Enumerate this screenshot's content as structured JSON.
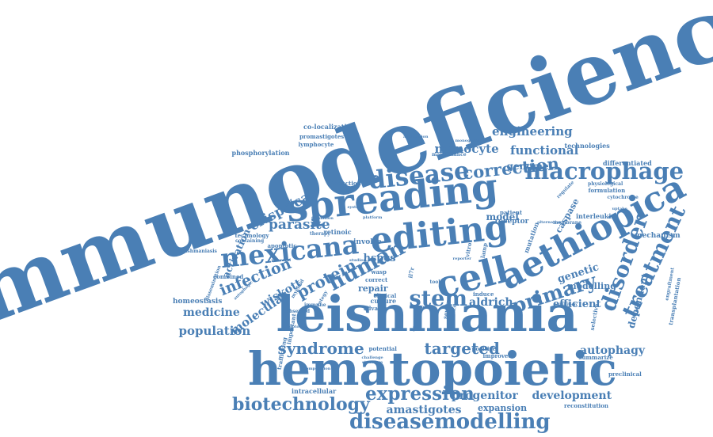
{
  "cloud": {
    "color": "#4a7fb5",
    "words": [
      {
        "text": "immunodeficiency"
      },
      {
        "text": "hematopoietic"
      },
      {
        "text": "leishmania"
      },
      {
        "text": "spreading"
      },
      {
        "text": "editing"
      },
      {
        "text": "cell"
      },
      {
        "text": "aethiopica"
      },
      {
        "text": "mexicana"
      },
      {
        "text": "disease"
      },
      {
        "text": "macrophage"
      },
      {
        "text": "human"
      },
      {
        "text": "stem"
      },
      {
        "text": "disorder"
      },
      {
        "text": "treatment"
      },
      {
        "text": "primary"
      },
      {
        "text": "diseasemodelling"
      },
      {
        "text": "expression"
      },
      {
        "text": "biotechnology"
      },
      {
        "text": "syndrome"
      },
      {
        "text": "targeted"
      },
      {
        "text": "protein"
      },
      {
        "text": "infection"
      },
      {
        "text": "correction"
      },
      {
        "text": "crispr/cas"
      },
      {
        "text": "parasite"
      },
      {
        "text": "engineering"
      },
      {
        "text": "monocyte"
      },
      {
        "text": "functional"
      },
      {
        "text": "progenitor"
      },
      {
        "text": "development"
      },
      {
        "text": "amastigotes"
      },
      {
        "text": "autophagy"
      },
      {
        "text": "molecular"
      },
      {
        "text": "population"
      },
      {
        "text": "medicine"
      },
      {
        "text": "hspcs"
      },
      {
        "text": "genetic"
      },
      {
        "text": "wiskott"
      },
      {
        "text": "aldrich"
      },
      {
        "text": "efficient"
      },
      {
        "text": "activation"
      },
      {
        "text": "genome"
      },
      {
        "text": "model"
      },
      {
        "text": "caspase"
      },
      {
        "text": "modelling"
      },
      {
        "text": "dependent"
      },
      {
        "text": "expansion"
      },
      {
        "text": "repair"
      },
      {
        "text": "homeostasis"
      },
      {
        "text": "mechanism"
      },
      {
        "text": "involve"
      },
      {
        "text": "receptor"
      },
      {
        "text": "mutation"
      },
      {
        "text": "interleukin"
      },
      {
        "text": "differentiated"
      },
      {
        "text": "technologies"
      },
      {
        "text": "phosphorylation"
      },
      {
        "text": "co-localization"
      },
      {
        "text": "promastigotes"
      },
      {
        "text": "lymphocyte"
      },
      {
        "text": "retinoic"
      },
      {
        "text": "technology"
      },
      {
        "text": "leishmaniasis"
      },
      {
        "text": "combined"
      },
      {
        "text": "intracellular"
      },
      {
        "text": "reconstitution"
      },
      {
        "text": "preclinical"
      },
      {
        "text": "summarize"
      },
      {
        "text": "positive"
      },
      {
        "text": "potential"
      },
      {
        "text": "culture"
      },
      {
        "text": "clinical"
      },
      {
        "text": "severe"
      },
      {
        "text": "recent"
      },
      {
        "text": "advance"
      },
      {
        "text": "correct"
      },
      {
        "text": "wasp"
      },
      {
        "text": "il7r"
      },
      {
        "text": "vitro"
      },
      {
        "text": "lamp"
      },
      {
        "text": "induce"
      },
      {
        "text": "improved"
      },
      {
        "text": "formulation"
      },
      {
        "text": "physiological"
      },
      {
        "text": "cytochrome"
      },
      {
        "text": "uptake"
      },
      {
        "text": "maintenance"
      },
      {
        "text": "induction"
      },
      {
        "text": "application"
      },
      {
        "text": "monogenic"
      },
      {
        "text": "therapy"
      },
      {
        "text": "trafficking"
      },
      {
        "text": "important"
      },
      {
        "text": "composition"
      },
      {
        "text": "strategy"
      },
      {
        "text": "myeloid"
      },
      {
        "text": "immune"
      },
      {
        "text": "observed"
      },
      {
        "text": "system"
      },
      {
        "text": "containing"
      },
      {
        "text": "apoptotic"
      },
      {
        "text": "autophagic"
      },
      {
        "text": "powerful"
      },
      {
        "text": "studies"
      },
      {
        "text": "challenge"
      },
      {
        "text": "structure"
      },
      {
        "text": "exhibition"
      },
      {
        "text": "engraftment"
      },
      {
        "text": "transplantation"
      },
      {
        "text": "selective"
      },
      {
        "text": "dissemination"
      },
      {
        "text": "patient"
      },
      {
        "text": "regulate"
      },
      {
        "text": "membrane"
      },
      {
        "text": "formation"
      },
      {
        "text": "tool"
      },
      {
        "text": "platform"
      },
      {
        "text": "apoptosis"
      },
      {
        "text": "complex"
      },
      {
        "text": "alternative"
      },
      {
        "text": "reporter"
      },
      {
        "text": "genotoxicity"
      }
    ]
  }
}
